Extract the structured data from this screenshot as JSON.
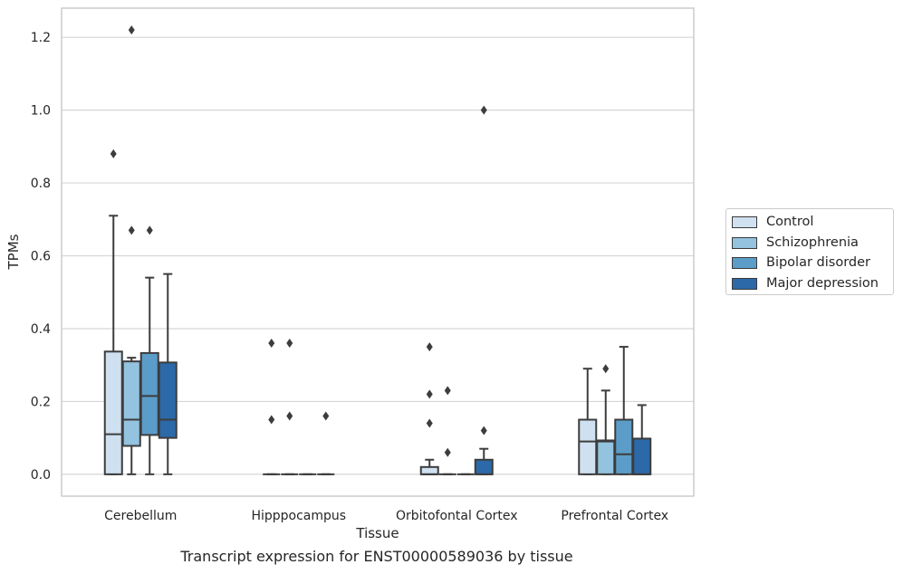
{
  "caption": "Transcript expression for ENST00000589036 by tissue",
  "chart_data": {
    "type": "box",
    "xlabel": "Tissue",
    "ylabel": "TPMs",
    "ylim": [
      -0.06,
      1.28
    ],
    "yticks": [
      "0.0",
      "0.2",
      "0.4",
      "0.6",
      "0.8",
      "1.0",
      "1.2"
    ],
    "categories": [
      "Cerebellum",
      "Hipppocampus",
      "Orbitofontal Cortex",
      "Prefrontal Cortex"
    ],
    "grid": "horizontal",
    "legend_position": "right",
    "series": [
      {
        "name": "Control",
        "color": "#cfe0f0",
        "boxes": [
          {
            "q1": 0.0,
            "median": 0.11,
            "q3": 0.337,
            "whisker_low": 0.0,
            "whisker_high": 0.71,
            "outliers": [
              0.88
            ]
          },
          {
            "q1": 0.0,
            "median": 0.0,
            "q3": 0.0,
            "whisker_low": 0.0,
            "whisker_high": 0.0,
            "outliers": [
              0.15,
              0.36
            ]
          },
          {
            "q1": 0.0,
            "median": 0.0,
            "q3": 0.02,
            "whisker_low": 0.0,
            "whisker_high": 0.04,
            "outliers": [
              0.14,
              0.22,
              0.35
            ]
          },
          {
            "q1": 0.0,
            "median": 0.09,
            "q3": 0.15,
            "whisker_low": 0.0,
            "whisker_high": 0.29,
            "outliers": []
          }
        ]
      },
      {
        "name": "Schizophrenia",
        "color": "#93c3df",
        "boxes": [
          {
            "q1": 0.078,
            "median": 0.15,
            "q3": 0.31,
            "whisker_low": 0.0,
            "whisker_high": 0.32,
            "outliers": [
              0.67,
              1.22
            ]
          },
          {
            "q1": 0.0,
            "median": 0.0,
            "q3": 0.0,
            "whisker_low": 0.0,
            "whisker_high": 0.0,
            "outliers": [
              0.16,
              0.36
            ]
          },
          {
            "q1": 0.0,
            "median": 0.0,
            "q3": 0.0,
            "whisker_low": 0.0,
            "whisker_high": 0.0,
            "outliers": [
              0.06,
              0.23
            ]
          },
          {
            "q1": 0.0,
            "median": 0.09,
            "q3": 0.093,
            "whisker_low": 0.0,
            "whisker_high": 0.23,
            "outliers": [
              0.29
            ]
          }
        ]
      },
      {
        "name": "Bipolar disorder",
        "color": "#5b9cc9",
        "boxes": [
          {
            "q1": 0.108,
            "median": 0.215,
            "q3": 0.333,
            "whisker_low": 0.0,
            "whisker_high": 0.54,
            "outliers": [
              0.67
            ]
          },
          {
            "q1": 0.0,
            "median": 0.0,
            "q3": 0.0,
            "whisker_low": 0.0,
            "whisker_high": 0.0,
            "outliers": []
          },
          {
            "q1": 0.0,
            "median": 0.0,
            "q3": 0.0,
            "whisker_low": 0.0,
            "whisker_high": 0.0,
            "outliers": []
          },
          {
            "q1": 0.0,
            "median": 0.055,
            "q3": 0.15,
            "whisker_low": 0.0,
            "whisker_high": 0.35,
            "outliers": []
          }
        ]
      },
      {
        "name": "Major depression",
        "color": "#2c69a8",
        "boxes": [
          {
            "q1": 0.1,
            "median": 0.15,
            "q3": 0.307,
            "whisker_low": 0.0,
            "whisker_high": 0.55,
            "outliers": []
          },
          {
            "q1": 0.0,
            "median": 0.0,
            "q3": 0.0,
            "whisker_low": 0.0,
            "whisker_high": 0.0,
            "outliers": [
              0.16
            ]
          },
          {
            "q1": 0.0,
            "median": 0.0,
            "q3": 0.04,
            "whisker_low": 0.0,
            "whisker_high": 0.07,
            "outliers": [
              0.12,
              1.0
            ]
          },
          {
            "q1": 0.0,
            "median": 0.0,
            "q3": 0.098,
            "whisker_low": 0.0,
            "whisker_high": 0.19,
            "outliers": []
          }
        ]
      }
    ]
  }
}
